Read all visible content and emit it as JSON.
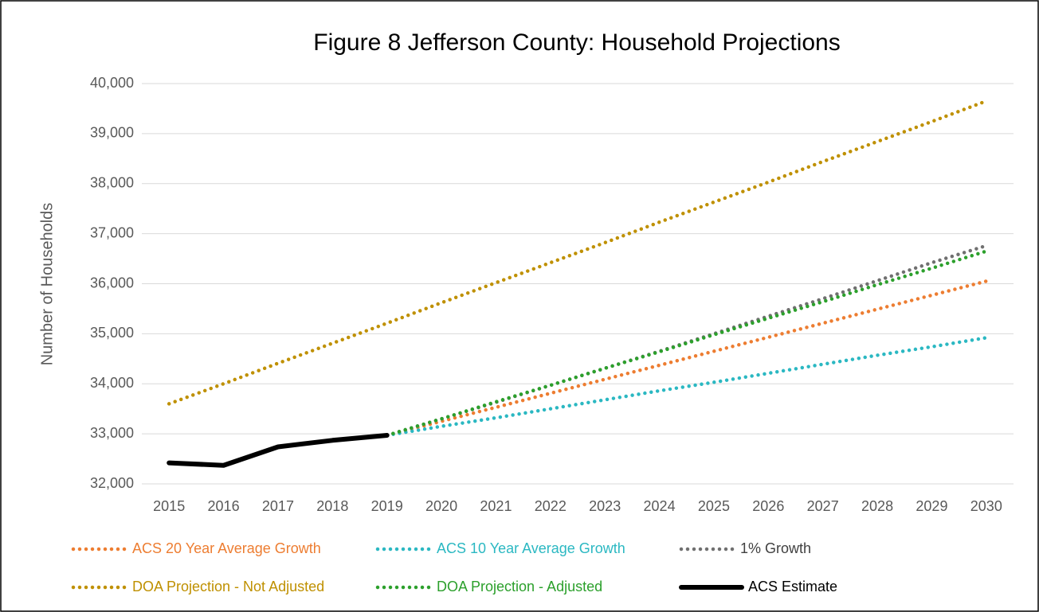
{
  "chart_data": {
    "type": "line",
    "title": "Figure 8  Jefferson County: Household Projections",
    "y_label": "Number of Households",
    "categories": [
      "2015",
      "2016",
      "2017",
      "2018",
      "2019",
      "2020",
      "2021",
      "2022",
      "2023",
      "2024",
      "2025",
      "2026",
      "2027",
      "2028",
      "2029",
      "2030"
    ],
    "ylim": [
      32000,
      40000
    ],
    "yticks": [
      {
        "value": 32000,
        "label": "32,000"
      },
      {
        "value": 33000,
        "label": "33,000"
      },
      {
        "value": 34000,
        "label": "34,000"
      },
      {
        "value": 35000,
        "label": "35,000"
      },
      {
        "value": 36000,
        "label": "36,000"
      },
      {
        "value": 37000,
        "label": "37,000"
      },
      {
        "value": 38000,
        "label": "38,000"
      },
      {
        "value": 39000,
        "label": "39,000"
      },
      {
        "value": 40000,
        "label": "40,000"
      }
    ],
    "grid": true,
    "legend": "bottom",
    "series": [
      {
        "name": "ACS 20 Year Average Growth",
        "color": "#ed7d31",
        "style": "dotted",
        "values": [
          null,
          null,
          null,
          null,
          32970,
          33250,
          33530,
          33810,
          34090,
          34370,
          34650,
          34930,
          35210,
          35490,
          35770,
          36050
        ]
      },
      {
        "name": "ACS 10 Year Average Growth",
        "color": "#2bb8c2",
        "style": "dotted",
        "values": [
          null,
          null,
          null,
          null,
          32970,
          33150,
          33320,
          33500,
          33680,
          33860,
          34030,
          34210,
          34390,
          34570,
          34740,
          34920
        ]
      },
      {
        "name": "1% Growth",
        "color": "#707070",
        "style": "dotted",
        "values": [
          null,
          null,
          null,
          null,
          32970,
          33300,
          33630,
          33970,
          34310,
          34650,
          35000,
          35350,
          35700,
          36060,
          36420,
          36760
        ]
      },
      {
        "name": "DOA Projection - Not Adjusted",
        "color": "#bf9000",
        "style": "dotted",
        "values": [
          33600,
          34000,
          34410,
          34810,
          35210,
          35620,
          36020,
          36420,
          36820,
          37230,
          37630,
          38030,
          38440,
          38840,
          39240,
          39650
        ]
      },
      {
        "name": "DOA Projection - Adjusted",
        "color": "#2ca02c",
        "style": "dotted",
        "values": [
          null,
          null,
          null,
          null,
          32970,
          33300,
          33640,
          33970,
          34310,
          34640,
          34980,
          35310,
          35640,
          35980,
          36310,
          36650
        ]
      },
      {
        "name": "ACS Estimate",
        "color": "#000000",
        "style": "solid",
        "values": [
          32420,
          32370,
          32740,
          32870,
          32970,
          null,
          null,
          null,
          null,
          null,
          null,
          null,
          null,
          null,
          null,
          null
        ]
      }
    ]
  }
}
